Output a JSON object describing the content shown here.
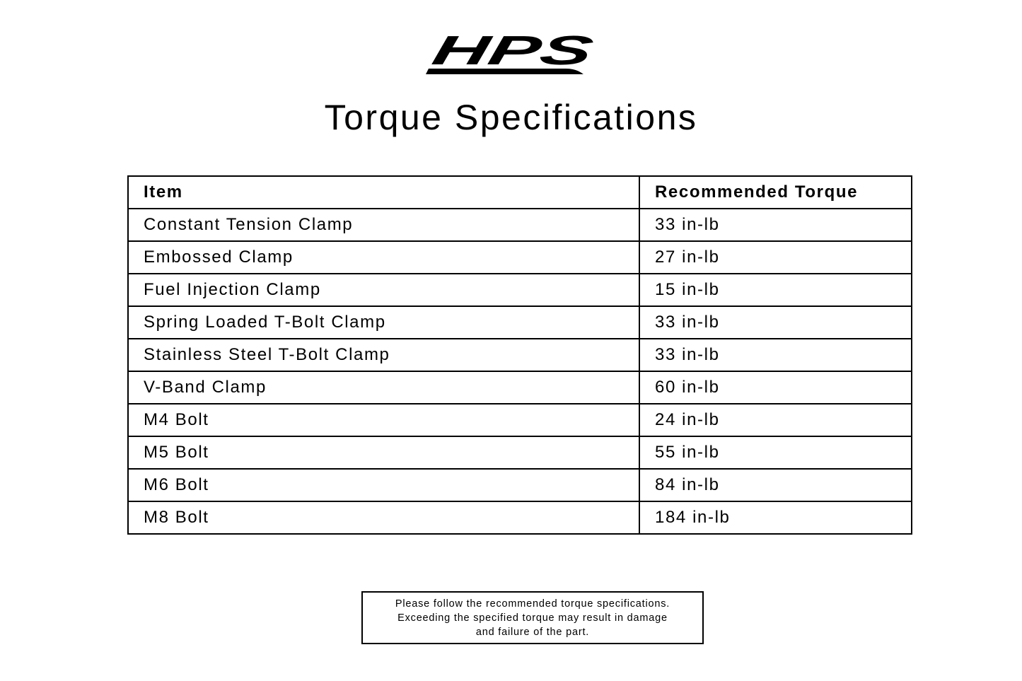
{
  "logo": {
    "text": "HPS"
  },
  "title": "Torque Specifications",
  "table": {
    "headers": [
      "Item",
      "Recommended Torque"
    ],
    "rows": [
      [
        "Constant Tension Clamp",
        "33 in-lb"
      ],
      [
        "Embossed Clamp",
        "27 in-lb"
      ],
      [
        "Fuel Injection Clamp",
        "15 in-lb"
      ],
      [
        "Spring Loaded T-Bolt Clamp",
        "33 in-lb"
      ],
      [
        "Stainless Steel T-Bolt Clamp",
        "33 in-lb"
      ],
      [
        "V-Band Clamp",
        "60 in-lb"
      ],
      [
        "M4 Bolt",
        "24 in-lb"
      ],
      [
        "M5 Bolt",
        "55 in-lb"
      ],
      [
        "M6 Bolt",
        "84 in-lb"
      ],
      [
        "M8 Bolt",
        "184 in-lb"
      ]
    ]
  },
  "note": {
    "lines": [
      "Please follow the recommended torque specifications.",
      "Exceeding the specified torque may result in damage",
      "and failure of the part."
    ]
  }
}
